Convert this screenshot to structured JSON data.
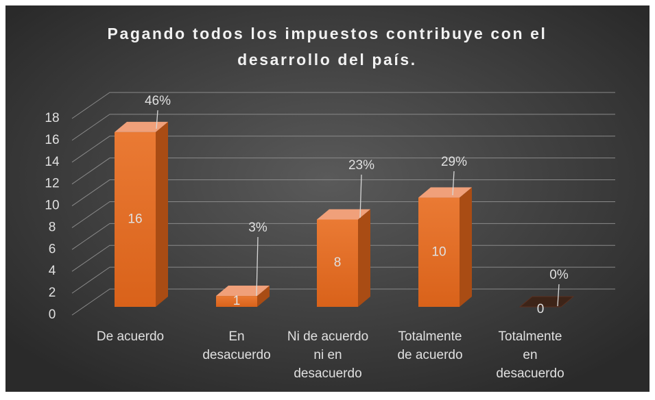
{
  "chart_data": {
    "type": "bar3d",
    "title": "Pagando todos los impuestos contribuye con el desarrollo del país.",
    "categories": [
      [
        "De acuerdo"
      ],
      [
        "En",
        "desacuerdo"
      ],
      [
        "Ni de acuerdo",
        "ni en",
        "desacuerdo"
      ],
      [
        "Totalmente",
        "de acuerdo"
      ],
      [
        "Totalmente",
        "en",
        "desacuerdo"
      ]
    ],
    "values": [
      16,
      1,
      8,
      10,
      0
    ],
    "percent_labels": [
      "46%",
      "3%",
      "23%",
      "29%",
      "0%"
    ],
    "color": "#e46c1e",
    "ylim": [
      0,
      18
    ],
    "yticks": [
      0,
      2,
      4,
      6,
      8,
      10,
      12,
      14,
      16,
      18
    ],
    "grid": true
  }
}
